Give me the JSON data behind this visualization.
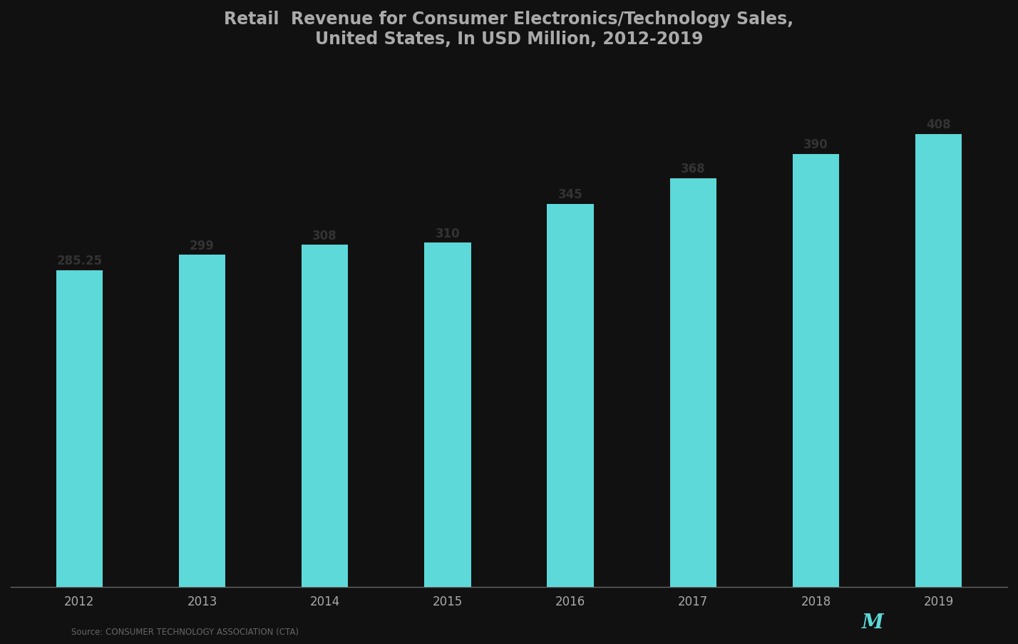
{
  "title_line1": "Retail  Revenue for Consumer Electronics/Technology Sales,",
  "title_line2": "United States, In USD Million, 2012-2019",
  "categories": [
    "2012",
    "2013",
    "2014",
    "2015",
    "2016",
    "2017",
    "2018",
    "2019"
  ],
  "values": [
    285.25,
    299,
    308,
    310,
    345,
    368,
    390,
    408
  ],
  "bar_color": "#5dd9d9",
  "background_color": "#111111",
  "plot_bg_color": "#111111",
  "text_color": "#aaaaaa",
  "label_color": "#333333",
  "bar_labels": [
    "285.25",
    "299",
    "308",
    "310",
    "345",
    "368",
    "390",
    "408"
  ],
  "source_text": "Source: CONSUMER TECHNOLOGY ASSOCIATION (CTA)",
  "title_fontsize": 17,
  "label_fontsize": 12,
  "tick_fontsize": 12,
  "ylim": [
    0,
    470
  ],
  "bar_width": 0.38
}
